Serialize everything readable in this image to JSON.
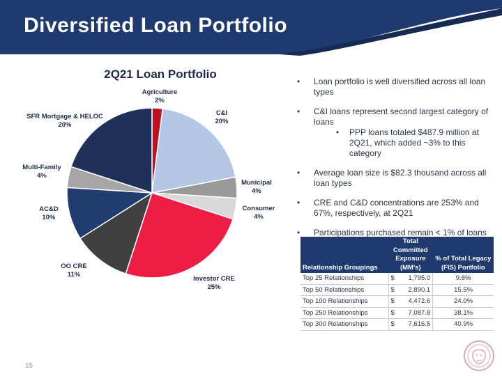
{
  "title": "Diversified Loan Portfolio",
  "colors": {
    "navy": "#1e3a6e",
    "accent": "#1c2f5c"
  },
  "chart_data": {
    "type": "pie",
    "title": "2Q21 Loan Portfolio",
    "slices": [
      {
        "label": "Agriculture",
        "value_label": "2%",
        "value": 2,
        "color": "#c00f1e"
      },
      {
        "label": "C&I",
        "value_label": "20%",
        "value": 20,
        "color": "#b4c7e7"
      },
      {
        "label": "Municipal",
        "value_label": "4%",
        "value": 4,
        "color": "#9a9a9a"
      },
      {
        "label": "Consumer",
        "value_label": "4%",
        "value": 4,
        "color": "#d9d9d9"
      },
      {
        "label": "Investor CRE",
        "value_label": "25%",
        "value": 25,
        "color": "#ef1c45"
      },
      {
        "label": "OO CRE",
        "value_label": "11%",
        "value": 11,
        "color": "#404040"
      },
      {
        "label": "AC&D",
        "value_label": "10%",
        "value": 10,
        "color": "#213c6e"
      },
      {
        "label": "Multi-Family",
        "value_label": "4%",
        "value": 4,
        "color": "#a6a6a6"
      },
      {
        "label": "SFR Mortgage & HELOC",
        "value_label": "20%",
        "value": 20,
        "color": "#1f3158"
      }
    ]
  },
  "bullets": [
    {
      "text": "Loan portfolio is well diversified across all loan types"
    },
    {
      "text": "C&I loans represent second largest category of loans",
      "sub": "PPP loans totaled $487.9 million at 2Q21, which added ~3% to this category"
    },
    {
      "text": "Average loan size is $82.3 thousand across all loan types"
    },
    {
      "text": "CRE and C&D concentrations are 253% and 67%, respectively, at 2Q21"
    },
    {
      "text": "Participations purchased remain < 1% of loans"
    }
  ],
  "table": {
    "headers": {
      "group": "Relationship Groupings",
      "exposure": "Total Committed Exposure (MM's)",
      "pct": "% of Total Legacy (FIS) Portfolio"
    },
    "rows": [
      {
        "group": "Top 25 Relationships",
        "currency": "$",
        "exposure": "1,795.0",
        "pct": "9.6%"
      },
      {
        "group": "Top 50 Relationships",
        "currency": "$",
        "exposure": "2,890.1",
        "pct": "15.5%"
      },
      {
        "group": "Top 100 Relationships",
        "currency": "$",
        "exposure": "4,472.6",
        "pct": "24.0%"
      },
      {
        "group": "Top 250 Relationships",
        "currency": "$",
        "exposure": "7,087.8",
        "pct": "38.1%"
      },
      {
        "group": "Top 300 Relationships",
        "currency": "$",
        "exposure": "7,616.5",
        "pct": "40.9%"
      }
    ]
  },
  "page_number": "15",
  "logo_icon": "lion-head-logo-icon"
}
